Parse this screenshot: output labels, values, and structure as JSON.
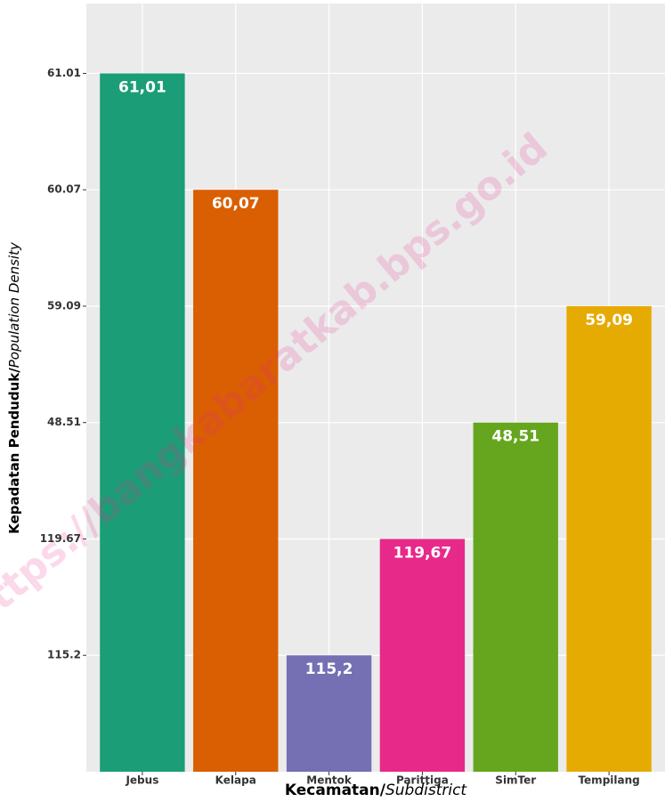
{
  "chart_data": {
    "type": "bar",
    "categories": [
      "Jebus",
      "Kelapa",
      "Mentok",
      "Parittiga",
      "SimTer",
      "Tempilang"
    ],
    "values": [
      61.01,
      60.07,
      115.2,
      119.67,
      48.51,
      59.09
    ],
    "value_labels": [
      "61,01",
      "60,07",
      "115,2",
      "119,67",
      "48,51",
      "59,09"
    ],
    "colors": [
      "#1b9e77",
      "#d95f02",
      "#7570b3",
      "#e7298a",
      "#66a61e",
      "#e6ab02"
    ],
    "y_scale": "discrete",
    "yticks": [
      "115.2",
      "119.67",
      "48.51",
      "59.09",
      "60.07",
      "61.01"
    ],
    "grid": true,
    "xlabel": {
      "main": "Kecamatan/",
      "italic": "Subdistrict"
    },
    "ylabel": {
      "main": "Kepadatan Penduduk/",
      "italic": "Population Density"
    },
    "watermark": "https://bangkabaratkab.bps.go.id"
  }
}
